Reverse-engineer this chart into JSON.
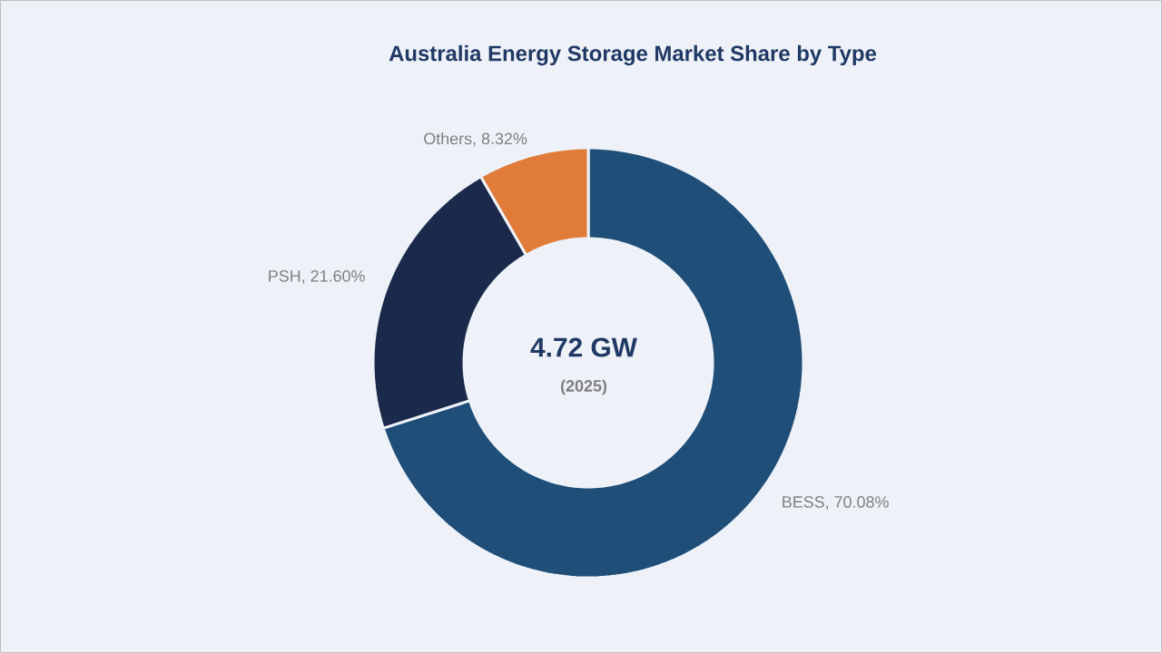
{
  "chart_data": {
    "type": "donut",
    "title": "Australia Energy Storage Market Share by Type",
    "categories": [
      "BESS",
      "PSH",
      "Others"
    ],
    "values": [
      70.08,
      21.6,
      8.32
    ],
    "colors": [
      "#1f4e79",
      "#1b2a4a",
      "#e07b39"
    ],
    "value_labels": [
      ", 70.08%",
      ", 21.60%",
      ", 8.32%"
    ],
    "annotations": [
      "4.72 GW",
      "(2025)"
    ]
  }
}
